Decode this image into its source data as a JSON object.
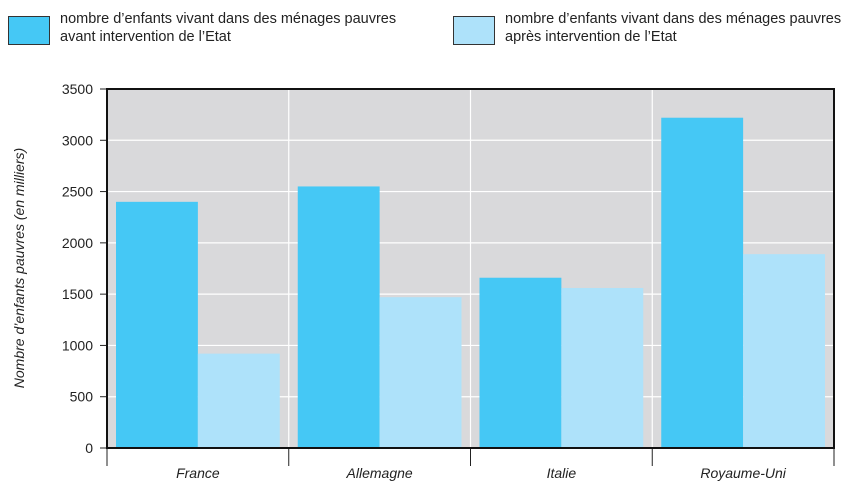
{
  "chart_data": {
    "type": "bar",
    "y_label": "Nombre d’enfants pauvres (en milliers)",
    "categories": [
      "France",
      "Allemagne",
      "Italie",
      "Royaume-Uni"
    ],
    "series": [
      {
        "name": "nombre d’enfants vivant dans des ménages pauvres avant intervention de l’Etat",
        "color": "#45c8f5",
        "values": [
          2400,
          2550,
          1660,
          3220
        ]
      },
      {
        "name": "nombre d’enfants vivant dans des ménages pauvres après intervention de l’Etat",
        "color": "#aee2fa",
        "values": [
          920,
          1470,
          1560,
          1890
        ]
      }
    ],
    "ylim": [
      0,
      3500
    ],
    "yticks": [
      0,
      500,
      1000,
      1500,
      2000,
      2500,
      3000,
      3500
    ],
    "grid": true
  }
}
